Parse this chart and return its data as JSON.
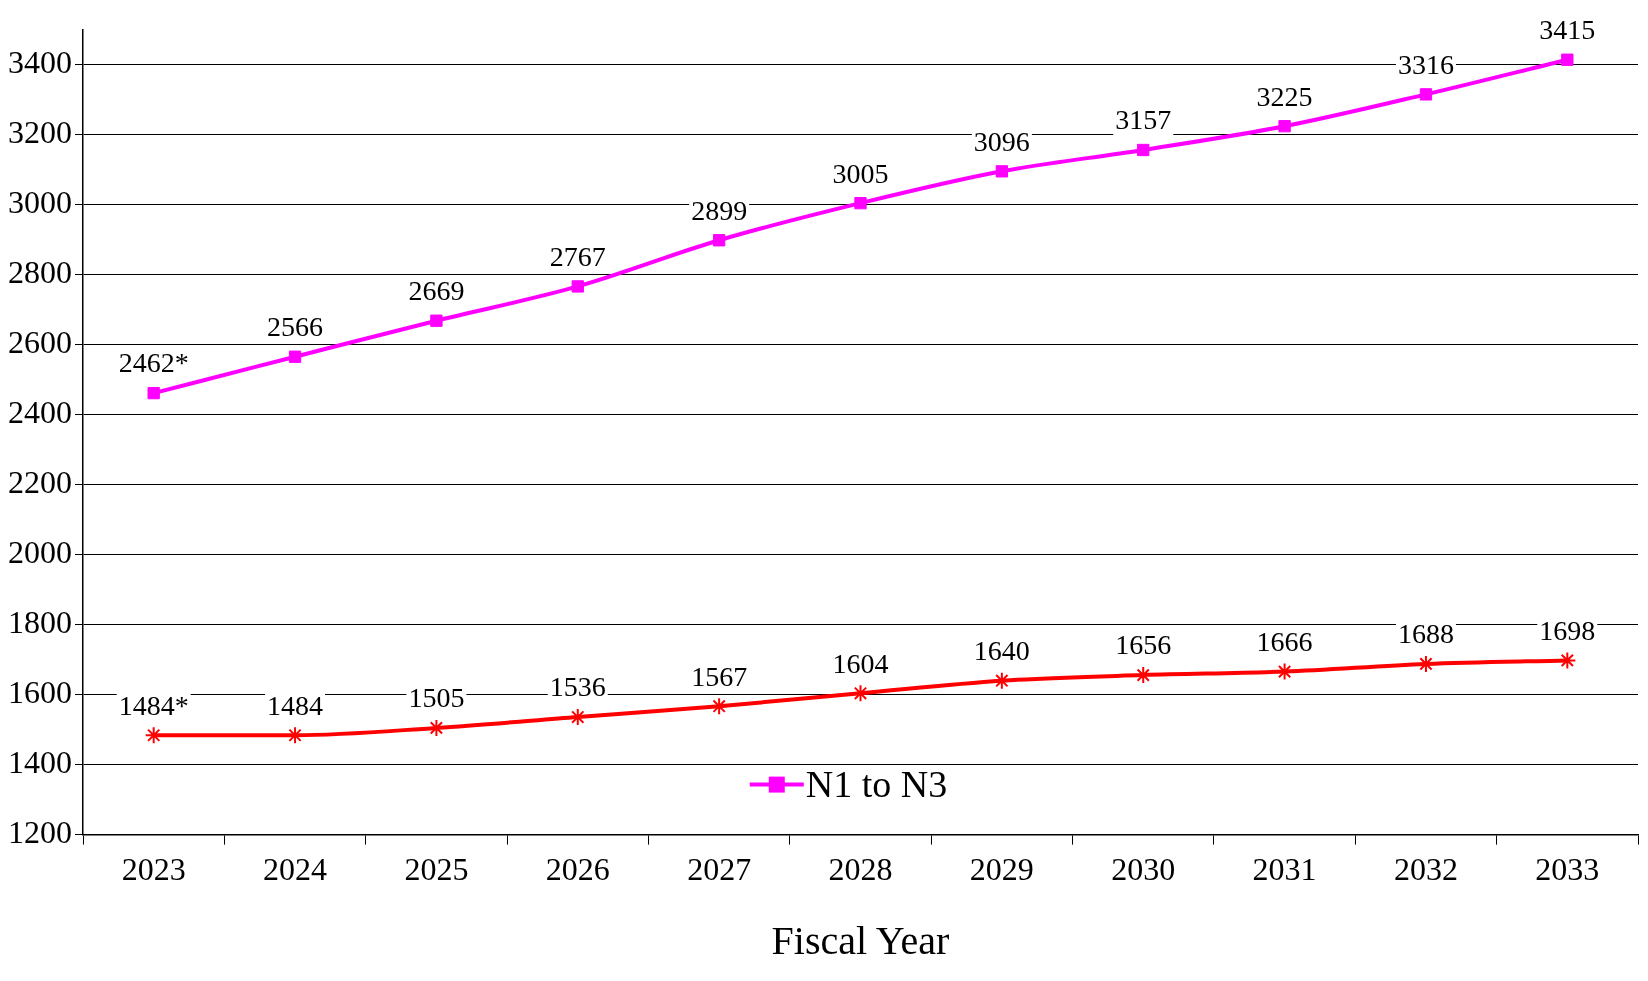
{
  "chart_data": {
    "type": "line",
    "xlabel": "Fiscal Year",
    "categories": [
      "2023",
      "2024",
      "2025",
      "2026",
      "2027",
      "2028",
      "2029",
      "2030",
      "2031",
      "2032",
      "2033"
    ],
    "series": [
      {
        "name": "N1 to N3",
        "color": "#ff00ff",
        "marker": "square",
        "values": [
          2462,
          2566,
          2669,
          2767,
          2899,
          3005,
          3096,
          3157,
          3225,
          3316,
          3415
        ],
        "value_labels": [
          "2462*",
          "2566",
          "2669",
          "2767",
          "2899",
          "3005",
          "3096",
          "3157",
          "3225",
          "3316",
          "3415"
        ]
      },
      {
        "color": "#ff0000",
        "marker": "cross",
        "values": [
          1484,
          1484,
          1505,
          1536,
          1567,
          1604,
          1640,
          1656,
          1666,
          1688,
          1698
        ],
        "value_labels": [
          "1484*",
          "1484",
          "1505",
          "1536",
          "1567",
          "1604",
          "1640",
          "1656",
          "1666",
          "1688",
          "1698"
        ]
      }
    ],
    "ylim": [
      1200,
      3500
    ],
    "yticks": [
      1200,
      1400,
      1600,
      1800,
      2000,
      2200,
      2400,
      2600,
      2800,
      3000,
      3200,
      3400
    ],
    "grid": "y",
    "legend": "bottom"
  }
}
